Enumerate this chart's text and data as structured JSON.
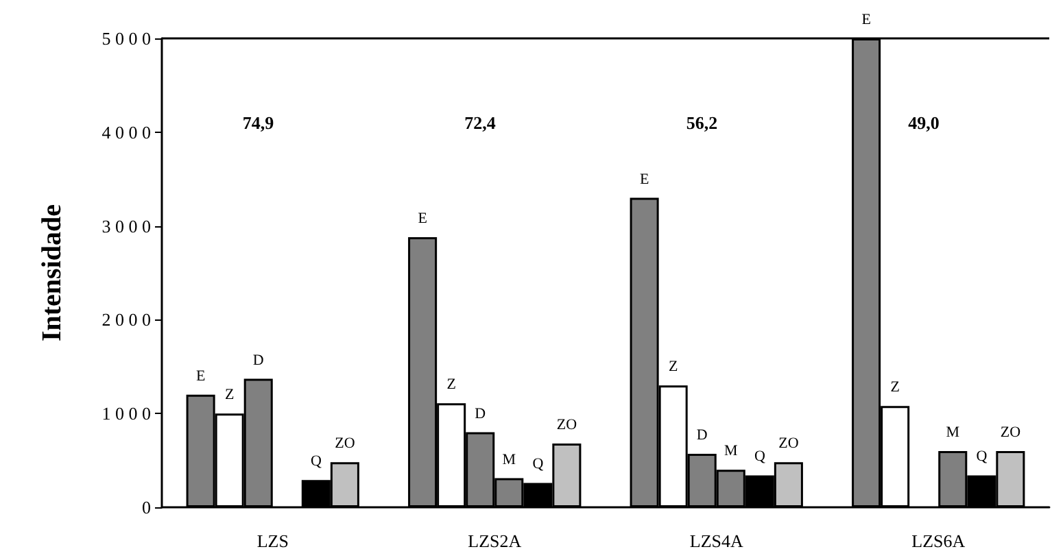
{
  "chart_data": {
    "type": "bar",
    "ylabel": "Intensidade",
    "categories": [
      "LZS",
      "LZS2A",
      "LZS4A",
      "LZS6A"
    ],
    "series": [
      {
        "name": "E",
        "color": "#808080",
        "values": [
          1200,
          2880,
          3300,
          5000
        ]
      },
      {
        "name": "Z",
        "color": "#ffffff",
        "values": [
          1000,
          1110,
          1300,
          1080
        ]
      },
      {
        "name": "D",
        "color": "#808080",
        "values": [
          1370,
          800,
          570,
          null
        ]
      },
      {
        "name": "M",
        "color": "#808080",
        "values": [
          null,
          310,
          400,
          600
        ]
      },
      {
        "name": "Q",
        "color": "#000000",
        "values": [
          290,
          260,
          340,
          340
        ]
      },
      {
        "name": "ZO",
        "color": "#c0c0c0",
        "values": [
          480,
          680,
          480,
          600
        ]
      }
    ],
    "ylim": [
      0,
      5000
    ],
    "yticks": [
      0,
      1000,
      2000,
      3000,
      4000,
      5000
    ],
    "grid": false,
    "legend": false,
    "annotations": [
      "74,9",
      "72,4",
      "56,2",
      "49,0"
    ]
  }
}
